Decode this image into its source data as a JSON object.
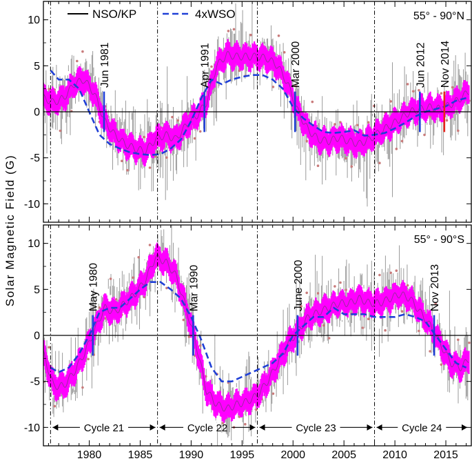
{
  "figure": {
    "ylabel": "Solar Magnetic Field (G)",
    "xticks": [
      "1980",
      "1985",
      "1990",
      "1995",
      "2000",
      "2005",
      "2010",
      "2015"
    ]
  },
  "legend": {
    "items": [
      {
        "label": "NSO/KP",
        "style": "solid",
        "color": "#000000"
      },
      {
        "label": "4xWSO",
        "style": "dashed",
        "color": "#1f3fd6"
      }
    ]
  },
  "colors": {
    "error_band": "#ff00ff",
    "raw_data": "#9a9a9a",
    "wso": "#1f3fd6",
    "reversal_marker": "#1f3fd6",
    "latest_marker": "#e8241c",
    "dots": "#c97b7b"
  },
  "chart_data": [
    {
      "type": "line",
      "region": "55° - 90°N",
      "xlim": [
        1975.5,
        2017.5
      ],
      "ylim": [
        -12,
        12
      ],
      "yticks": [
        -10,
        -5,
        0,
        5,
        10
      ],
      "grid": false,
      "legend_position": "top-left",
      "cycle_boundaries": [
        1976.2,
        1986.7,
        1996.5,
        2008.0
      ],
      "nso_kp": {
        "x": [
          1975.5,
          1976.5,
          1977.5,
          1978.5,
          1979.5,
          1980.5,
          1981.5,
          1982.5,
          1983.5,
          1984.5,
          1985.5,
          1986.5,
          1987.5,
          1988.5,
          1989.5,
          1990.5,
          1991.5,
          1992.5,
          1993.5,
          1994.5,
          1995.5,
          1996.5,
          1997.5,
          1998.5,
          1999.5,
          2000.5,
          2001.5,
          2002.5,
          2003.5,
          2004.5,
          2005.5,
          2006.5,
          2007.5,
          2008.5,
          2009.5,
          2010.5,
          2011.5,
          2012.5,
          2013.5,
          2014.5,
          2015.5,
          2016.5,
          2017.3
        ],
        "y": [
          1.5,
          1.0,
          1.5,
          3.0,
          3.5,
          2.0,
          -1.0,
          -2.5,
          -3.5,
          -4.0,
          -4.3,
          -3.0,
          -2.5,
          -3.0,
          -1.5,
          -0.5,
          1.0,
          5.0,
          6.2,
          6.0,
          6.0,
          6.0,
          5.8,
          5.0,
          3.0,
          0.0,
          -2.0,
          -3.0,
          -3.2,
          -2.8,
          -3.2,
          -3.5,
          -3.0,
          -2.2,
          -1.5,
          -0.8,
          0.0,
          0.3,
          0.5,
          0.3,
          0.8,
          1.5,
          2.3
        ],
        "error": 1.0
      },
      "wso": {
        "x": [
          1976.2,
          1977.0,
          1978.0,
          1979.0,
          1980.0,
          1981.0,
          1982.0,
          1983.0,
          1984.0,
          1985.0,
          1986.0,
          1987.0,
          1988.0,
          1989.0,
          1990.0,
          1991.0,
          1992.0,
          1993.0,
          1994.0,
          1995.0,
          1996.0,
          1997.0,
          1998.0,
          1999.0,
          2000.0,
          2001.0,
          2002.0,
          2003.0,
          2004.0,
          2005.0,
          2006.0,
          2007.0,
          2008.0,
          2009.0,
          2010.0,
          2011.0,
          2012.0,
          2013.0,
          2014.0,
          2015.0,
          2016.0,
          2017.0
        ],
        "y": [
          4.5,
          3.5,
          3.5,
          2.5,
          0.0,
          -2.5,
          -3.5,
          -4.0,
          -4.4,
          -4.6,
          -4.7,
          -4.6,
          -4.0,
          -3.0,
          -1.0,
          1.5,
          3.5,
          3.0,
          3.5,
          3.8,
          4.0,
          4.0,
          3.5,
          2.5,
          0.5,
          -0.7,
          -1.5,
          -2.2,
          -2.3,
          -2.2,
          -2.0,
          -2.6,
          -2.5,
          -2.3,
          -1.8,
          -1.2,
          -0.5,
          0.0,
          0.3,
          0.6,
          1.2,
          1.5
        ]
      },
      "reversals": [
        {
          "label": "Jun 1981",
          "x": 1981.45,
          "color": "blue"
        },
        {
          "label": "Apr 1991",
          "x": 1991.3,
          "color": "blue"
        },
        {
          "label": "Mar 2000",
          "x": 2000.2,
          "color": "blue"
        },
        {
          "label": "Jun 2012",
          "x": 2012.45,
          "color": "blue"
        },
        {
          "label": "Nov 2014",
          "x": 2014.85,
          "color": "red"
        }
      ]
    },
    {
      "type": "line",
      "region": "55° - 90°S",
      "xlim": [
        1975.5,
        2017.5
      ],
      "ylim": [
        -12,
        12
      ],
      "yticks": [
        -10,
        -5,
        0,
        5,
        10
      ],
      "grid": false,
      "cycle_boundaries": [
        1976.2,
        1986.7,
        1996.5,
        2008.0
      ],
      "nso_kp": {
        "x": [
          1975.5,
          1976.5,
          1977.5,
          1978.5,
          1979.5,
          1980.5,
          1981.5,
          1982.5,
          1983.5,
          1984.5,
          1985.5,
          1986.5,
          1987.5,
          1988.5,
          1989.5,
          1990.5,
          1991.5,
          1992.5,
          1993.5,
          1994.5,
          1995.5,
          1996.5,
          1997.5,
          1998.5,
          1999.5,
          2000.5,
          2001.5,
          2002.5,
          2003.5,
          2004.5,
          2005.5,
          2006.5,
          2007.5,
          2008.5,
          2009.5,
          2010.5,
          2011.5,
          2012.5,
          2013.5,
          2014.5,
          2015.5,
          2016.5,
          2017.3
        ],
        "y": [
          -2.0,
          -5.5,
          -5.5,
          -4.0,
          -2.0,
          0.5,
          3.0,
          2.5,
          3.5,
          4.5,
          6.0,
          8.5,
          8.0,
          6.5,
          3.0,
          -1.0,
          -6.0,
          -7.5,
          -8.0,
          -7.5,
          -7.2,
          -6.5,
          -5.0,
          -3.0,
          -1.0,
          0.5,
          2.0,
          2.5,
          3.0,
          3.5,
          3.5,
          4.0,
          3.5,
          3.5,
          4.0,
          4.5,
          4.0,
          2.5,
          1.0,
          -1.0,
          -3.0,
          -3.5,
          -2.5
        ],
        "error": 1.0
      },
      "wso": {
        "x": [
          1976.2,
          1977.0,
          1978.0,
          1979.0,
          1980.0,
          1981.0,
          1982.0,
          1983.0,
          1984.0,
          1985.0,
          1986.0,
          1987.0,
          1988.0,
          1989.0,
          1990.0,
          1991.0,
          1992.0,
          1993.0,
          1994.0,
          1995.0,
          1996.0,
          1997.0,
          1998.0,
          1999.0,
          2000.0,
          2001.0,
          2002.0,
          2003.0,
          2004.0,
          2005.0,
          2006.0,
          2007.0,
          2008.0,
          2009.0,
          2010.0,
          2011.0,
          2012.0,
          2013.0,
          2014.0,
          2015.0,
          2016.0,
          2017.0
        ],
        "y": [
          -3.5,
          -4.0,
          -3.5,
          -2.0,
          0.0,
          2.5,
          3.0,
          3.0,
          4.0,
          5.0,
          5.8,
          5.8,
          5.0,
          4.0,
          2.0,
          -0.5,
          -3.5,
          -5.0,
          -5.0,
          -4.5,
          -4.0,
          -3.5,
          -3.0,
          -2.0,
          0.0,
          1.0,
          2.0,
          2.0,
          3.0,
          2.3,
          2.3,
          2.3,
          2.0,
          2.0,
          2.0,
          2.3,
          2.0,
          1.5,
          0.0,
          -1.5,
          -3.0,
          -3.5
        ]
      },
      "reversals": [
        {
          "label": "May 1980",
          "x": 1980.35,
          "color": "blue"
        },
        {
          "label": "Mar 1990",
          "x": 1990.2,
          "color": "blue"
        },
        {
          "label": "June 2000",
          "x": 2000.45,
          "color": "blue"
        },
        {
          "label": "Nov 2013",
          "x": 2013.85,
          "color": "blue"
        }
      ],
      "cycles": [
        {
          "label": "Cycle 21",
          "x0": 1976.2,
          "x1": 1986.7
        },
        {
          "label": "Cycle 22",
          "x0": 1986.7,
          "x1": 1996.5
        },
        {
          "label": "Cycle 23",
          "x0": 1996.5,
          "x1": 2008.0
        },
        {
          "label": "Cycle 24",
          "x0": 2008.0,
          "x1": 2017.3
        }
      ],
      "cycle_arrow_y": -10
    }
  ]
}
